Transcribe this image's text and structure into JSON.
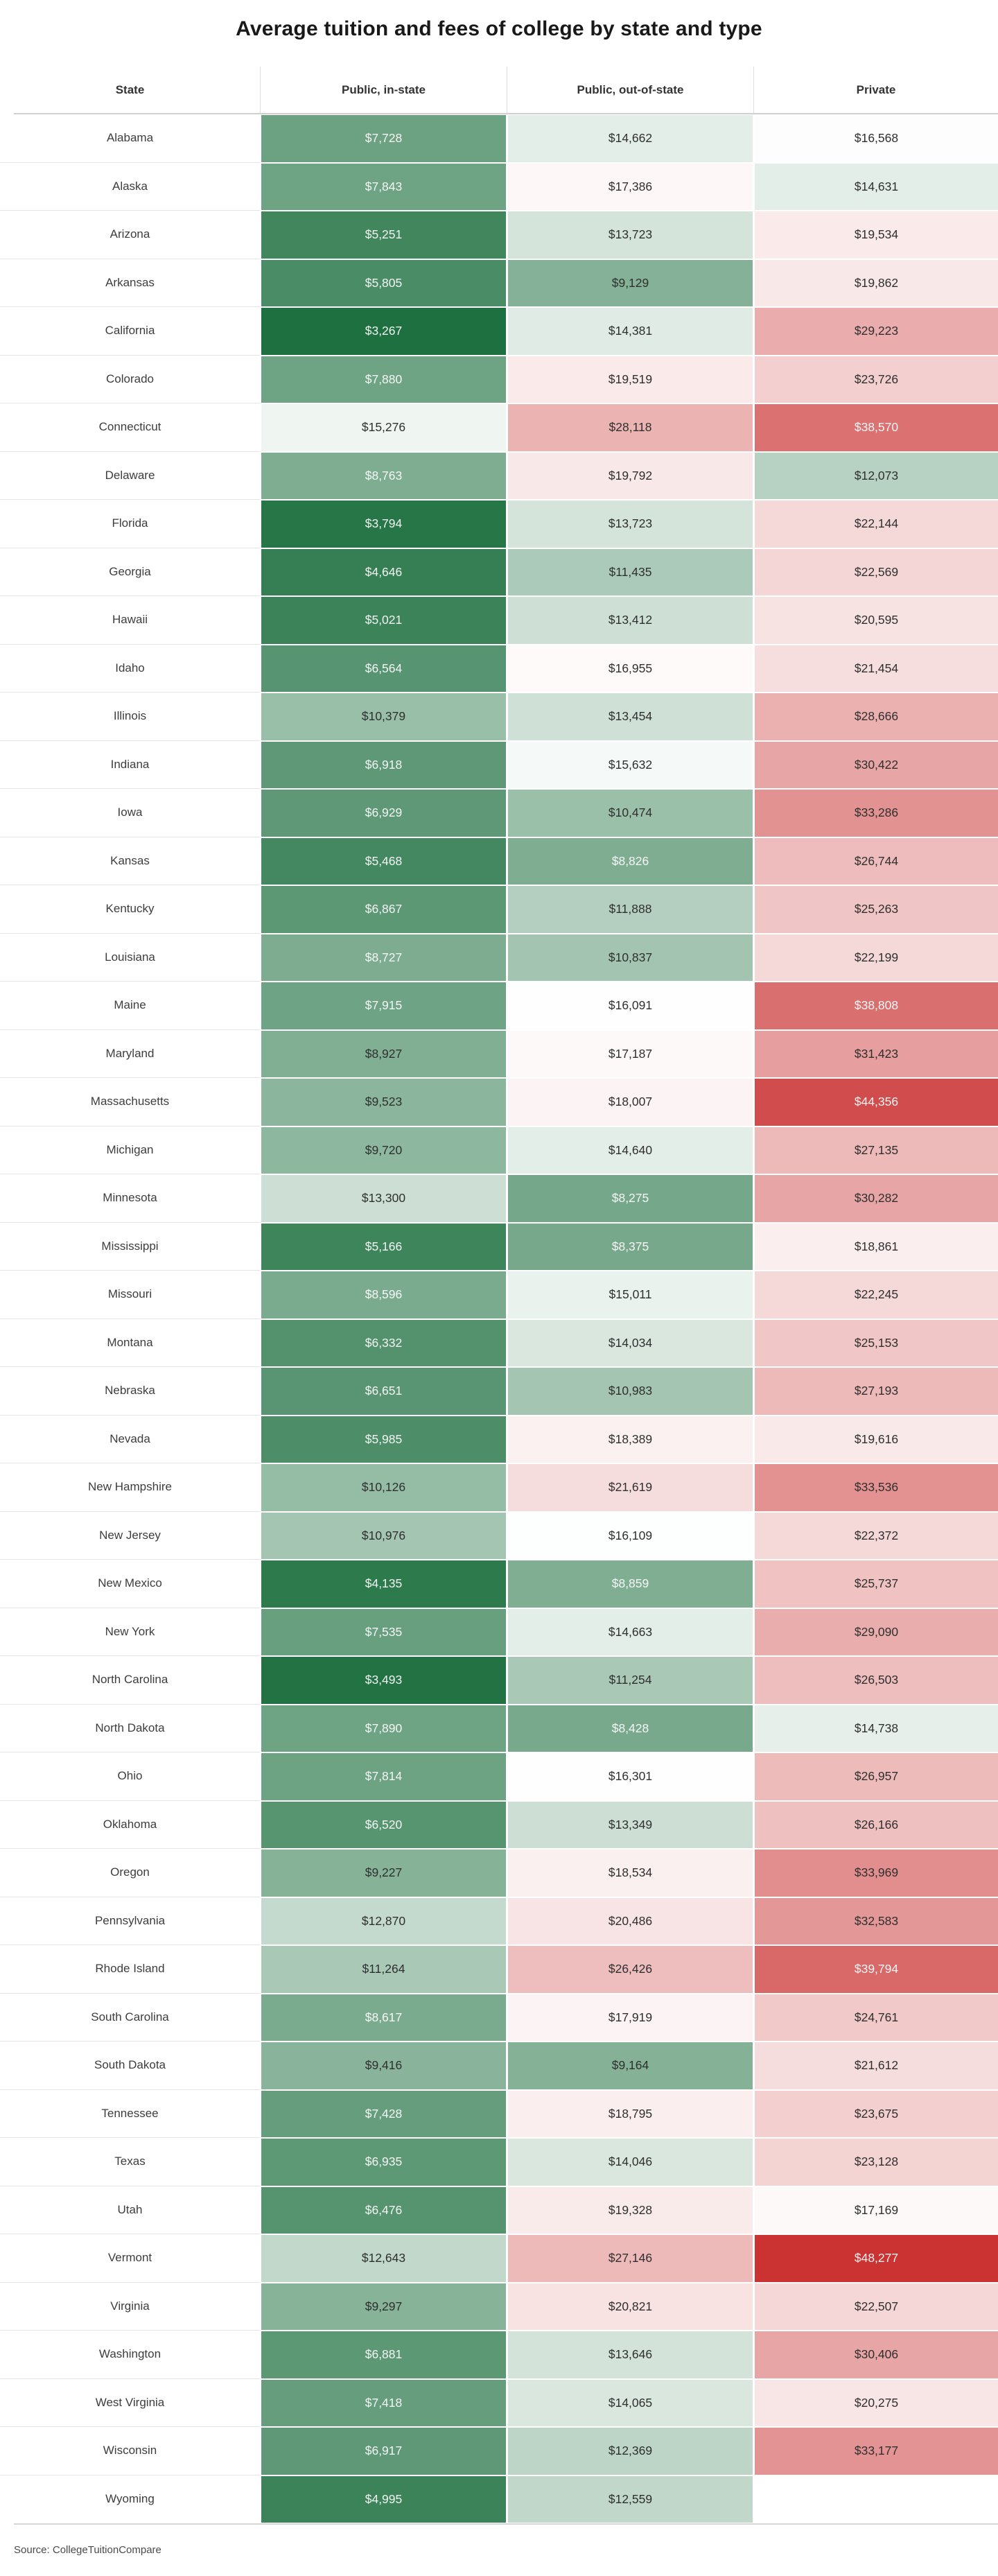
{
  "chart_data": {
    "type": "heatmap",
    "title": "Average tuition and fees of college by state and type",
    "columns": [
      "State",
      "Public, in-state",
      "Public, out-of-state",
      "Private"
    ],
    "rows": [
      [
        "Alabama",
        7728,
        14662,
        16568
      ],
      [
        "Alaska",
        7843,
        17386,
        14631
      ],
      [
        "Arizona",
        5251,
        13723,
        19534
      ],
      [
        "Arkansas",
        5805,
        9129,
        19862
      ],
      [
        "California",
        3267,
        14381,
        29223
      ],
      [
        "Colorado",
        7880,
        19519,
        23726
      ],
      [
        "Connecticut",
        15276,
        28118,
        38570
      ],
      [
        "Delaware",
        8763,
        19792,
        12073
      ],
      [
        "Florida",
        3794,
        13723,
        22144
      ],
      [
        "Georgia",
        4646,
        11435,
        22569
      ],
      [
        "Hawaii",
        5021,
        13412,
        20595
      ],
      [
        "Idaho",
        6564,
        16955,
        21454
      ],
      [
        "Illinois",
        10379,
        13454,
        28666
      ],
      [
        "Indiana",
        6918,
        15632,
        30422
      ],
      [
        "Iowa",
        6929,
        10474,
        33286
      ],
      [
        "Kansas",
        5468,
        8826,
        26744
      ],
      [
        "Kentucky",
        6867,
        11888,
        25263
      ],
      [
        "Louisiana",
        8727,
        10837,
        22199
      ],
      [
        "Maine",
        7915,
        16091,
        38808
      ],
      [
        "Maryland",
        8927,
        17187,
        31423
      ],
      [
        "Massachusetts",
        9523,
        18007,
        44356
      ],
      [
        "Michigan",
        9720,
        14640,
        27135
      ],
      [
        "Minnesota",
        13300,
        8275,
        30282
      ],
      [
        "Mississippi",
        5166,
        8375,
        18861
      ],
      [
        "Missouri",
        8596,
        15011,
        22245
      ],
      [
        "Montana",
        6332,
        14034,
        25153
      ],
      [
        "Nebraska",
        6651,
        10983,
        27193
      ],
      [
        "Nevada",
        5985,
        18389,
        19616
      ],
      [
        "New Hampshire",
        10126,
        21619,
        33536
      ],
      [
        "New Jersey",
        10976,
        16109,
        22372
      ],
      [
        "New Mexico",
        4135,
        8859,
        25737
      ],
      [
        "New York",
        7535,
        14663,
        29090
      ],
      [
        "North Carolina",
        3493,
        11254,
        26503
      ],
      [
        "North Dakota",
        7890,
        8428,
        14738
      ],
      [
        "Ohio",
        7814,
        16301,
        26957
      ],
      [
        "Oklahoma",
        6520,
        13349,
        26166
      ],
      [
        "Oregon",
        9227,
        18534,
        33969
      ],
      [
        "Pennsylvania",
        12870,
        20486,
        32583
      ],
      [
        "Rhode Island",
        11264,
        26426,
        39794
      ],
      [
        "South Carolina",
        8617,
        17919,
        24761
      ],
      [
        "South Dakota",
        9416,
        9164,
        21612
      ],
      [
        "Tennessee",
        7428,
        18795,
        23675
      ],
      [
        "Texas",
        6935,
        14046,
        23128
      ],
      [
        "Utah",
        6476,
        19328,
        17169
      ],
      [
        "Vermont",
        12643,
        27146,
        48277
      ],
      [
        "Virginia",
        9297,
        20821,
        22507
      ],
      [
        "Washington",
        6881,
        13646,
        30406
      ],
      [
        "West Virginia",
        7418,
        14065,
        20275
      ],
      [
        "Wisconsin",
        6917,
        12369,
        33177
      ],
      [
        "Wyoming",
        4995,
        12559,
        null
      ]
    ],
    "source": "Source: CollegeTuitionCompare",
    "color_scale": {
      "type": "diverging",
      "min_value": 3267,
      "midpoint": 16200,
      "max_value": 48277,
      "low_color": "#1E7040",
      "mid_color": "#FFFFFF",
      "high_color": "#CB3333",
      "white_text_at_or_below": 8880,
      "white_text_at_or_above": 38000
    }
  }
}
